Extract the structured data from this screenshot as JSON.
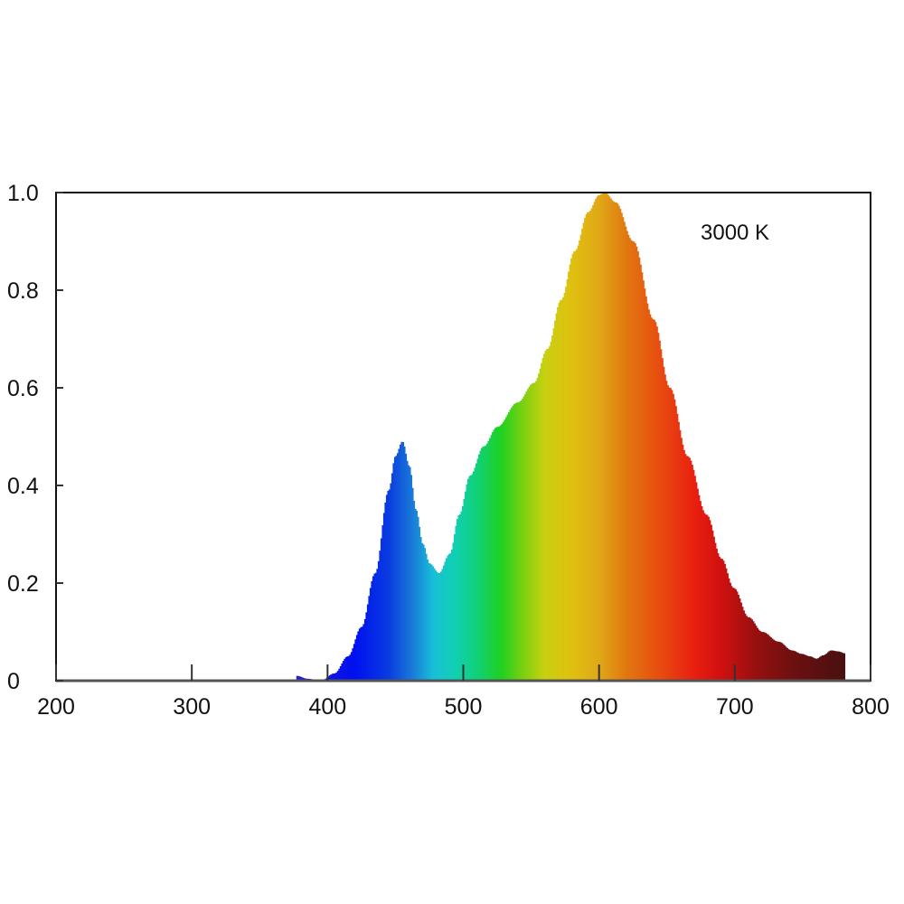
{
  "chart_data": {
    "type": "area",
    "title": "",
    "xlabel": "",
    "ylabel": "",
    "xlim": [
      200,
      800
    ],
    "ylim": [
      0,
      1.0
    ],
    "grid": false,
    "x_ticks": [
      "200",
      "300",
      "400",
      "500",
      "600",
      "700",
      "800"
    ],
    "y_ticks": [
      "0",
      "0.2",
      "0.4",
      "0.6",
      "0.8",
      "1.0"
    ],
    "annotation": "3000 K",
    "fill": "spectral colors by wavelength",
    "series": [
      {
        "x": [
          377,
          385,
          395,
          405,
          415,
          425,
          435,
          445,
          450,
          455,
          460,
          465,
          470,
          475,
          482,
          490,
          497,
          505,
          515,
          525,
          540,
          552,
          562,
          572,
          582,
          592,
          600,
          604,
          612,
          625,
          640,
          652,
          665,
          679,
          690,
          699,
          710,
          720,
          732,
          742,
          749,
          755,
          760,
          765,
          771,
          776,
          781
        ],
        "y": [
          0.01,
          0.004,
          0.0,
          0.015,
          0.05,
          0.11,
          0.22,
          0.39,
          0.46,
          0.49,
          0.44,
          0.35,
          0.28,
          0.24,
          0.22,
          0.26,
          0.34,
          0.42,
          0.48,
          0.52,
          0.57,
          0.61,
          0.68,
          0.78,
          0.88,
          0.96,
          0.995,
          1.0,
          0.98,
          0.9,
          0.74,
          0.6,
          0.46,
          0.34,
          0.25,
          0.19,
          0.13,
          0.1,
          0.08,
          0.062,
          0.055,
          0.05,
          0.045,
          0.052,
          0.062,
          0.06,
          0.056
        ]
      }
    ],
    "color_stops": [
      {
        "wl": 377,
        "color": "#2a1ad8"
      },
      {
        "wl": 420,
        "color": "#0010f0"
      },
      {
        "wl": 445,
        "color": "#0a3ce0"
      },
      {
        "wl": 462,
        "color": "#1a78d8"
      },
      {
        "wl": 478,
        "color": "#18c0d8"
      },
      {
        "wl": 495,
        "color": "#10d0b0"
      },
      {
        "wl": 512,
        "color": "#10d070"
      },
      {
        "wl": 528,
        "color": "#20d020"
      },
      {
        "wl": 545,
        "color": "#80d010"
      },
      {
        "wl": 560,
        "color": "#c8d010"
      },
      {
        "wl": 580,
        "color": "#e0c010"
      },
      {
        "wl": 600,
        "color": "#e0a818"
      },
      {
        "wl": 620,
        "color": "#e07810"
      },
      {
        "wl": 645,
        "color": "#e84c10"
      },
      {
        "wl": 670,
        "color": "#e82010"
      },
      {
        "wl": 690,
        "color": "#d01010"
      },
      {
        "wl": 715,
        "color": "#981010"
      },
      {
        "wl": 745,
        "color": "#6a1010"
      },
      {
        "wl": 781,
        "color": "#4a1010"
      }
    ]
  }
}
